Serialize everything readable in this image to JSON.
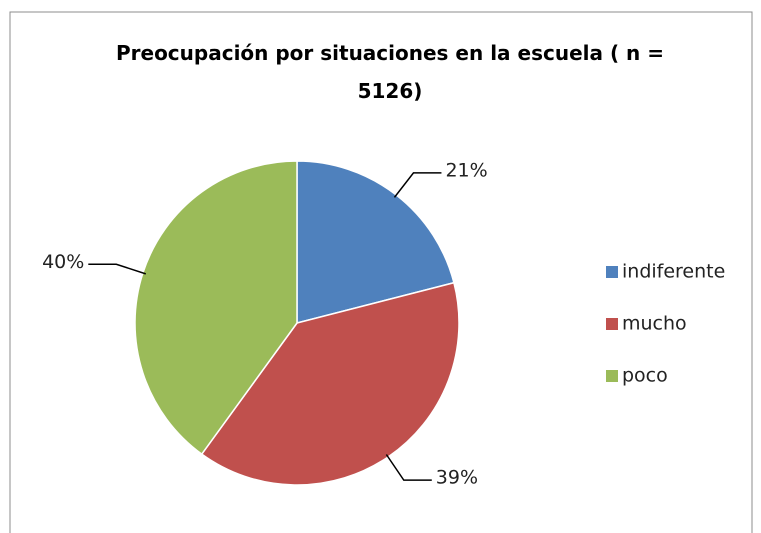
{
  "chart_data": {
    "type": "pie",
    "title": "Preocupación por situaciones en la escuela ( n = 5126)",
    "categories": [
      "indiferente",
      "mucho",
      "poco"
    ],
    "values": [
      21,
      39,
      40
    ],
    "value_labels": [
      "21%",
      "39%",
      "40%"
    ],
    "colors": [
      "#4f81bd",
      "#c0504d",
      "#9bbb59"
    ],
    "legend": "right"
  }
}
